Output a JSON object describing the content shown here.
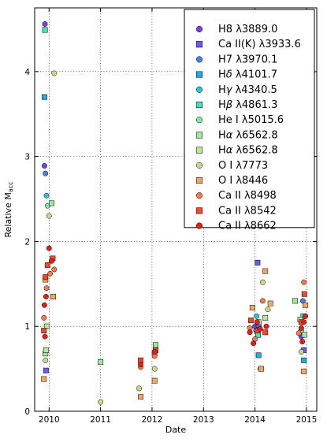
{
  "chart_data": {
    "type": "scatter",
    "xlabel": "Date",
    "ylabel": "Relative M",
    "ylabel_sub": "acc",
    "xlim": [
      2009.72,
      2015.2
    ],
    "ylim": [
      0,
      4.75
    ],
    "xticks": [
      2010,
      2011,
      2012,
      2013,
      2014,
      2015
    ],
    "yticks": [
      0,
      1,
      2,
      3,
      4
    ],
    "grid": "dotted",
    "legend_position": "top-right",
    "series": [
      {
        "name": "H8 λ3889.0",
        "base": "H8 ",
        "lambda": "λ3889.0",
        "marker": "circle",
        "color": "#7f3fe0",
        "points": [
          [
            2009.92,
            4.56
          ],
          [
            2009.91,
            2.89
          ],
          [
            2014.0,
            1.0
          ],
          [
            2014.9,
            0.88
          ]
        ]
      },
      {
        "name": "Ca II(K) λ3933.6",
        "base": "Ca II(K) ",
        "lambda": "λ3933.6",
        "marker": "square",
        "color": "#6b5cf0",
        "points": [
          [
            2009.94,
            0.48
          ],
          [
            2014.05,
            1.75
          ],
          [
            2014.07,
            1.02
          ],
          [
            2014.95,
            0.72
          ]
        ]
      },
      {
        "name": "H7 λ3970.1",
        "base": "H7 ",
        "lambda": "λ3970.1",
        "marker": "circle",
        "color": "#4a82e8",
        "points": [
          [
            2009.93,
            2.8
          ],
          [
            2014.02,
            0.95
          ],
          [
            2014.93,
            1.3
          ]
        ]
      },
      {
        "name": "Hδ λ4101.7",
        "base": "H",
        "greek": "δ",
        "lambda": " λ4101.7",
        "marker": "square",
        "color": "#2aa8e0",
        "points": [
          [
            2009.91,
            3.7
          ],
          [
            2014.07,
            0.66
          ],
          [
            2014.95,
            0.6
          ]
        ]
      },
      {
        "name": "Hγ λ4340.5",
        "base": "H",
        "greek": "γ",
        "lambda": " λ4340.5",
        "marker": "circle",
        "color": "#2cc8d2",
        "points": [
          [
            2009.95,
            2.54
          ],
          [
            2014.03,
            1.12
          ],
          [
            2014.92,
            1.05
          ]
        ]
      },
      {
        "name": "Hβ λ4861.3",
        "base": "H",
        "greek": "β",
        "lambda": " λ4861.3",
        "marker": "square",
        "color": "#40e0c0",
        "points": [
          [
            2009.92,
            4.49
          ],
          [
            2014.06,
            0.9
          ],
          [
            2014.94,
            1.12
          ]
        ]
      },
      {
        "name": "He I λ5015.6",
        "base": "He I ",
        "lambda": "λ5015.6",
        "marker": "circle",
        "color": "#7aeaa8",
        "points": [
          [
            2009.97,
            2.42
          ],
          [
            2014.1,
            0.5
          ],
          [
            2014.9,
            0.95
          ]
        ]
      },
      {
        "name": "Hα λ6562.8",
        "base": "H",
        "greek": "α",
        "lambda": " λ6562.8",
        "marker": "square",
        "color": "#a0e8a0",
        "points": [
          [
            2009.93,
            0.68
          ],
          [
            2010.05,
            2.45
          ],
          [
            2011.0,
            0.58
          ],
          [
            2012.07,
            0.78
          ],
          [
            2014.07,
            1.05
          ],
          [
            2014.78,
            1.3
          ],
          [
            2014.96,
            0.9
          ]
        ]
      },
      {
        "name": "Hα λ6562.8",
        "base": "H",
        "greek": "α",
        "lambda": " λ6562.8",
        "marker": "square",
        "color": "#b8e898",
        "points": [
          [
            2009.94,
            0.72
          ],
          [
            2009.96,
            1.0
          ],
          [
            2012.05,
            0.68
          ],
          [
            2014.2,
            1.1
          ],
          [
            2014.88,
            1.08
          ]
        ]
      },
      {
        "name": "O I λ7773",
        "base": "O I ",
        "lambda": "λ7773",
        "marker": "circle",
        "color": "#c8d890",
        "points": [
          [
            2010.1,
            3.98
          ],
          [
            2010.0,
            2.3
          ],
          [
            2009.93,
            0.6
          ],
          [
            2011.0,
            0.11
          ],
          [
            2011.75,
            0.27
          ],
          [
            2012.05,
            0.5
          ],
          [
            2014.15,
            1.52
          ],
          [
            2014.25,
            1.2
          ],
          [
            2014.9,
            0.7
          ]
        ]
      },
      {
        "name": "O I λ8446",
        "base": "O I ",
        "lambda": "λ8446",
        "marker": "square",
        "color": "#f0a868",
        "points": [
          [
            2009.9,
            0.38
          ],
          [
            2009.93,
            1.55
          ],
          [
            2010.08,
            1.35
          ],
          [
            2011.78,
            0.17
          ],
          [
            2012.05,
            0.36
          ],
          [
            2013.95,
            1.22
          ],
          [
            2014.12,
            0.5
          ],
          [
            2014.2,
            1.65
          ],
          [
            2014.3,
            1.27
          ],
          [
            2014.95,
            0.47
          ],
          [
            2014.98,
            1.25
          ]
        ]
      },
      {
        "name": "Ca II λ8498",
        "base": "Ca II ",
        "lambda": "λ8498",
        "marker": "circle",
        "color": "#f47a50",
        "points": [
          [
            2009.9,
            1.1
          ],
          [
            2009.95,
            1.45
          ],
          [
            2010.02,
            1.62
          ],
          [
            2010.1,
            1.67
          ],
          [
            2011.78,
            0.52
          ],
          [
            2012.05,
            0.65
          ],
          [
            2013.9,
            0.98
          ],
          [
            2014.0,
            0.85
          ],
          [
            2014.15,
            1.3
          ],
          [
            2014.95,
            1.52
          ],
          [
            2014.85,
            0.92
          ]
        ]
      },
      {
        "name": "Ca II λ8542",
        "base": "Ca II ",
        "lambda": "λ8542",
        "marker": "square",
        "color": "#ee4a2e",
        "points": [
          [
            2009.93,
            1.58
          ],
          [
            2009.97,
            1.72
          ],
          [
            2010.07,
            1.8
          ],
          [
            2009.9,
            0.95
          ],
          [
            2011.78,
            0.6
          ],
          [
            2012.07,
            0.72
          ],
          [
            2013.92,
            1.07
          ],
          [
            2014.05,
            0.95
          ],
          [
            2014.2,
            0.93
          ],
          [
            2014.96,
            1.38
          ],
          [
            2014.9,
            1.05
          ]
        ]
      },
      {
        "name": "Ca II λ8662",
        "base": "Ca II ",
        "lambda": "λ8662",
        "marker": "circle",
        "color": "#e0221a",
        "points": [
          [
            2009.91,
            1.25
          ],
          [
            2009.94,
            1.35
          ],
          [
            2010.0,
            1.92
          ],
          [
            2009.92,
            0.88
          ],
          [
            2010.05,
            1.77
          ],
          [
            2011.78,
            0.55
          ],
          [
            2012.05,
            0.7
          ],
          [
            2013.9,
            0.93
          ],
          [
            2013.97,
            0.8
          ],
          [
            2014.04,
            1.05
          ],
          [
            2014.1,
            0.97
          ],
          [
            2014.22,
            1.0
          ],
          [
            2014.9,
            0.98
          ],
          [
            2014.95,
            1.05
          ],
          [
            2014.98,
            1.12
          ],
          [
            2014.92,
            0.82
          ]
        ]
      }
    ]
  }
}
